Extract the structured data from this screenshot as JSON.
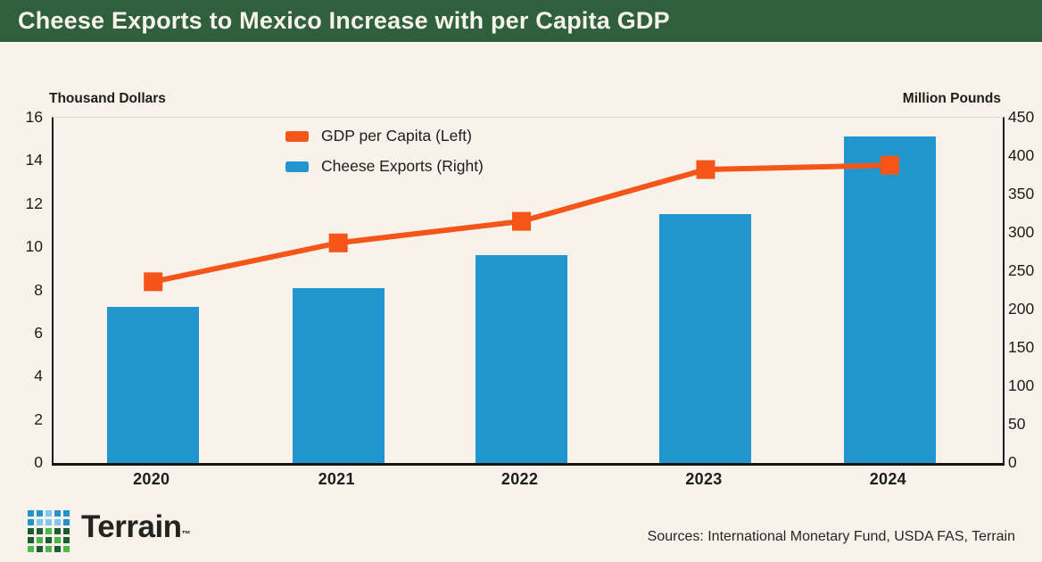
{
  "header": {
    "title": "Cheese Exports to Mexico Increase with per Capita GDP",
    "bg_color": "#2F5F3C",
    "text_color": "#F8F3EA"
  },
  "chart_data": {
    "type": "bar+line combo",
    "categories": [
      "2020",
      "2021",
      "2022",
      "2023",
      "2024"
    ],
    "series": [
      {
        "name": "GDP per Capita (Left)",
        "type": "line",
        "axis": "left",
        "marker": "square",
        "color": "#F6551A",
        "values": [
          8.4,
          10.2,
          11.2,
          13.6,
          13.8
        ]
      },
      {
        "name": "Cheese Exports (Right)",
        "type": "bar",
        "axis": "right",
        "color": "#2196CE",
        "values": [
          204,
          228,
          271,
          325,
          426
        ]
      }
    ],
    "left_axis": {
      "label": "Thousand Dollars",
      "min": 0,
      "max": 16,
      "ticks": [
        0,
        2,
        4,
        6,
        8,
        10,
        12,
        14,
        16
      ]
    },
    "right_axis": {
      "label": "Million Pounds",
      "min": 0,
      "max": 450,
      "ticks": [
        0,
        50,
        100,
        150,
        200,
        250,
        300,
        350,
        400,
        450
      ]
    },
    "grid": false,
    "legend_position": "top-left-of-plot"
  },
  "footer": {
    "sources": "Sources: International Monetary Fund, USDA FAS, Terrain",
    "logo": {
      "text": "Terrain",
      "trademark": "™",
      "palette": {
        "b": "#2492CF",
        "lb": "#7CC7EF",
        "dg": "#1E5B33",
        "lg": "#4CB648"
      },
      "grid": [
        [
          "b",
          "b",
          "lb",
          "b",
          "b"
        ],
        [
          "b",
          "lb",
          "lb",
          "lb",
          "b"
        ],
        [
          "dg",
          "dg",
          "lg",
          "dg",
          "dg"
        ],
        [
          "dg",
          "lg",
          "dg",
          "lg",
          "dg"
        ],
        [
          "lg",
          "dg",
          "lg",
          "dg",
          "lg"
        ]
      ]
    }
  }
}
